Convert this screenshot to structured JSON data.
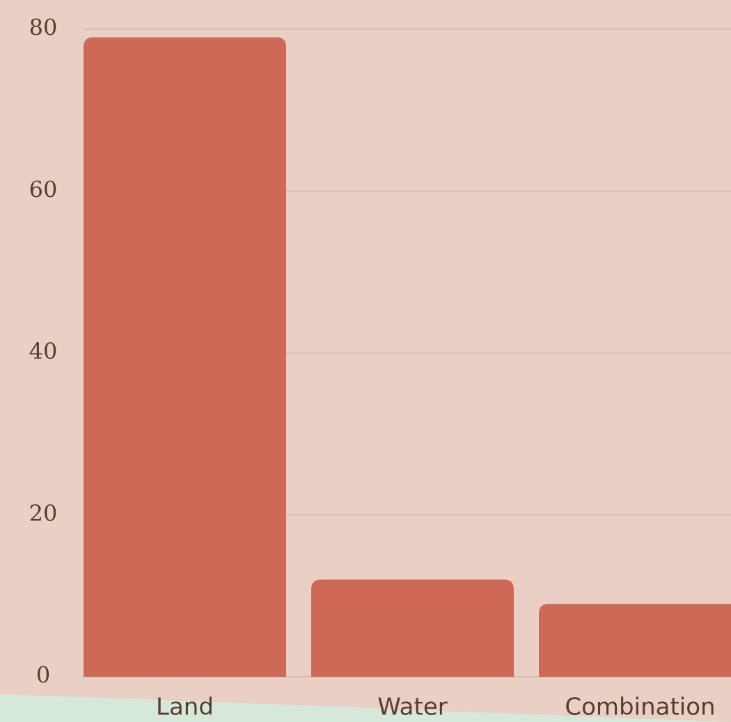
{
  "chart_data": {
    "type": "bar",
    "categories": [
      "Land",
      "Water",
      "Combination"
    ],
    "values": [
      79,
      12,
      9
    ],
    "color": "#cf6957",
    "ylim": [
      0,
      80
    ],
    "yticks": [
      0,
      20,
      40,
      60,
      80
    ],
    "grid": true
  }
}
